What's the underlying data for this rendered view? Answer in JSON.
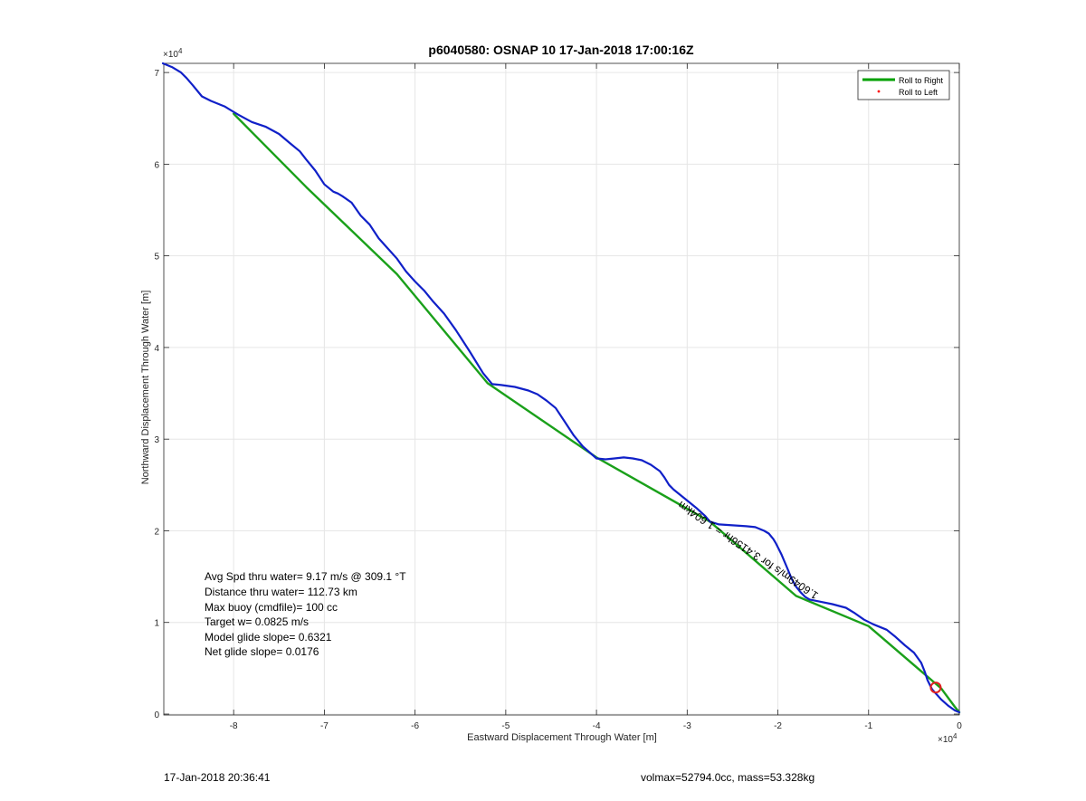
{
  "chart_data": {
    "type": "line",
    "title": "p6040580: OSNAP 10 17-Jan-2018 17:00:16Z",
    "xlabel": "Eastward Displacement Through Water [m]",
    "ylabel": "Northward Displacement Through Water [m]",
    "x_exponent_label": "×10",
    "x_exponent_power": "4",
    "y_exponent_label": "×10",
    "y_exponent_power": "4",
    "xlim": [
      -87700,
      0
    ],
    "ylim": [
      -100,
      71000
    ],
    "xticks": [
      -80000,
      -70000,
      -60000,
      -50000,
      -40000,
      -30000,
      -20000,
      -10000,
      0
    ],
    "xtick_labels": [
      "-8",
      "-7",
      "-6",
      "-5",
      "-4",
      "-3",
      "-2",
      "-1",
      "0"
    ],
    "yticks": [
      0,
      10000,
      20000,
      30000,
      40000,
      50000,
      60000,
      70000
    ],
    "ytick_labels": [
      "0",
      "1",
      "2",
      "3",
      "4",
      "5",
      "6",
      "7"
    ],
    "grid": true,
    "legend": {
      "placement": "top-right",
      "entries": [
        {
          "label": "Roll to Right",
          "color": "#00a000",
          "marker": "line"
        },
        {
          "label": "Roll to Left",
          "color": "#ff0000",
          "marker": "dot"
        }
      ]
    },
    "series": [
      {
        "name": "Roll to Right",
        "color": "#1aa01a",
        "x": [
          -80000,
          -72000,
          -62000,
          -52000,
          -40000,
          -27500,
          -18000,
          -10000,
          -2000,
          -500,
          0
        ],
        "y": [
          65500,
          57500,
          48000,
          36100,
          28000,
          21000,
          12900,
          9600,
          2800,
          800,
          200
        ]
      },
      {
        "name": "",
        "color": "#1020c8",
        "x": [
          -87800,
          -86800,
          -85800,
          -85200,
          -84500,
          -83500,
          -82500,
          -81000,
          -79500,
          -78000,
          -76500,
          -75000,
          -73800,
          -72700,
          -72000,
          -71000,
          -70000,
          -69000,
          -68500,
          -68000,
          -67000,
          -66000,
          -65000,
          -64000,
          -63000,
          -62000,
          -61000,
          -60000,
          -59000,
          -58000,
          -56800,
          -55500,
          -54000,
          -52500,
          -51500,
          -50500,
          -49000,
          -47500,
          -46500,
          -45500,
          -44500,
          -43500,
          -42500,
          -41500,
          -40000,
          -39000,
          -38000,
          -37000,
          -36000,
          -35000,
          -34000,
          -33000,
          -32500,
          -32000,
          -31500,
          -30000,
          -29000,
          -28000,
          -27500,
          -26500,
          -25000,
          -23500,
          -22500,
          -21500,
          -21000,
          -20500,
          -20200,
          -19600,
          -19000,
          -18500,
          -18000,
          -17500,
          -17000,
          -16500,
          -15500,
          -14000,
          -12500,
          -11500,
          -10500,
          -9500,
          -8000,
          -7000,
          -6000,
          -5000,
          -4200,
          -3800,
          -3500,
          -3000,
          -2000,
          -1200,
          -500,
          0
        ],
        "y": [
          71000,
          70600,
          70000,
          69400,
          68600,
          67400,
          66900,
          66300,
          65400,
          64600,
          64100,
          63300,
          62300,
          61400,
          60500,
          59300,
          57800,
          57000,
          56800,
          56500,
          55800,
          54400,
          53400,
          51900,
          50800,
          49700,
          48300,
          47200,
          46200,
          45000,
          43700,
          41900,
          39600,
          37200,
          36000,
          35900,
          35700,
          35300,
          34900,
          34200,
          33400,
          31900,
          30400,
          29200,
          27900,
          27800,
          27900,
          28000,
          27900,
          27700,
          27200,
          26500,
          25800,
          25000,
          24500,
          23300,
          22500,
          21600,
          21000,
          20700,
          20600,
          20500,
          20400,
          20000,
          19700,
          19100,
          18600,
          17400,
          16000,
          14800,
          13900,
          13300,
          12800,
          12500,
          12300,
          12000,
          11600,
          11000,
          10300,
          9800,
          9200,
          8400,
          7500,
          6700,
          5600,
          4600,
          3700,
          2700,
          1600,
          900,
          400,
          200
        ]
      }
    ],
    "red_circle": {
      "x": -2600,
      "y": 2900
    },
    "rotated_annotation": "1.6049m/s for 3.4156hr = 1.604km",
    "annotations": [
      "Avg Spd thru water=  9.17 m/s @ 309.1 °T",
      "Distance thru water= 112.73 km",
      "Max buoy (cmdfile)= 100 cc",
      "Target w= 0.0825 m/s",
      "Model glide slope= 0.6321",
      "Net glide slope= 0.0176"
    ]
  },
  "footer": {
    "left": "17-Jan-2018 20:36:41",
    "right": "volmax=52794.0cc, mass=53.328kg"
  }
}
